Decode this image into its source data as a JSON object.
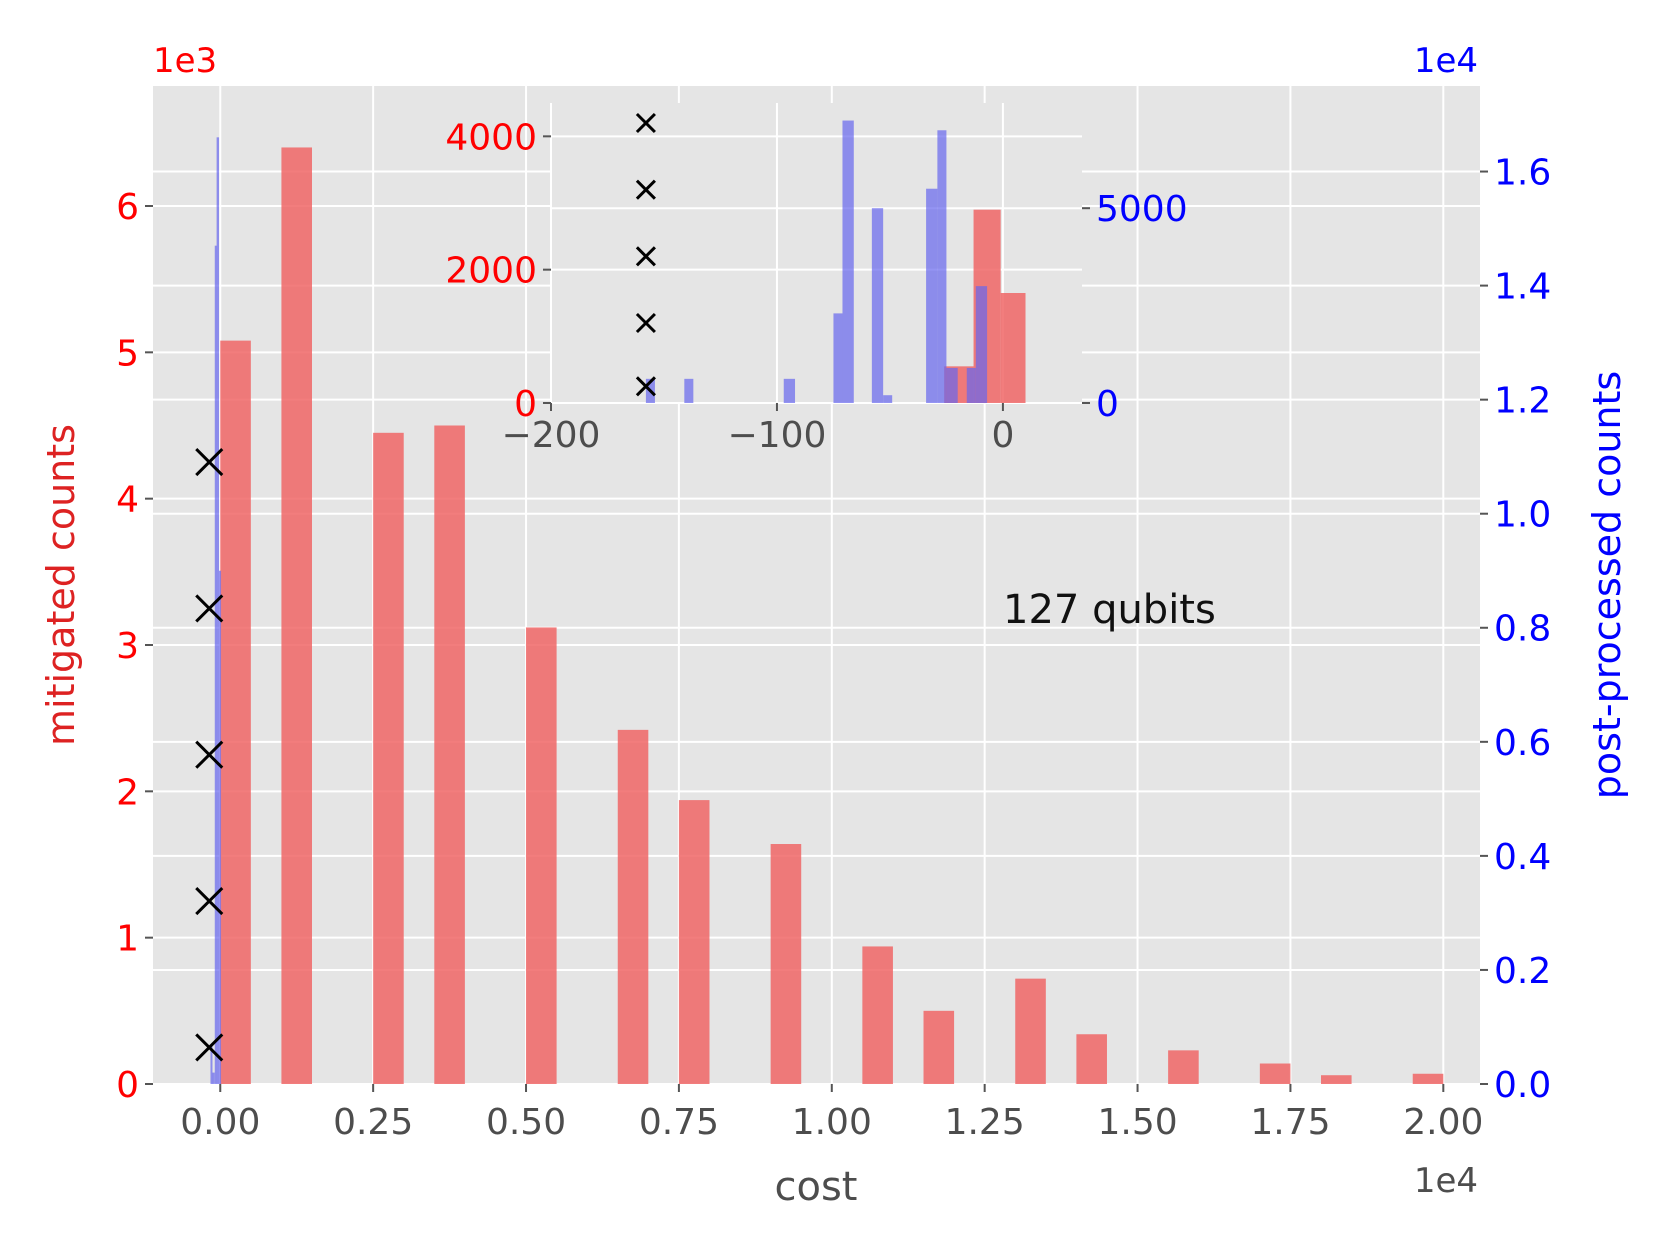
{
  "chart_data": [
    {
      "panel": "main",
      "type": "bar",
      "xlabel": "cost",
      "x_offset_text": "1e4",
      "x_ticks": [
        0.0,
        0.25,
        0.5,
        0.75,
        1.0,
        1.25,
        1.5,
        1.75,
        2.0
      ],
      "x_tick_labels": [
        "0.00",
        "0.25",
        "0.50",
        "0.75",
        "1.00",
        "1.25",
        "1.50",
        "1.75",
        "2.00"
      ],
      "xlim": [
        -0.11,
        2.06
      ],
      "ylabel_left": "mitigated counts",
      "y_left_offset_text": "1e3",
      "y_left_ticks": [
        0,
        1,
        2,
        3,
        4,
        5,
        6
      ],
      "ylim_left": [
        0,
        6.82
      ],
      "ylabel_right": "post-processed counts",
      "y_right_offset_text": "1e4",
      "y_right_ticks": [
        0.0,
        0.2,
        0.4,
        0.6,
        0.8,
        1.0,
        1.2,
        1.4,
        1.6
      ],
      "y_right_tick_labels": [
        "0.0",
        "0.2",
        "0.4",
        "0.6",
        "0.8",
        "1.0",
        "1.2",
        "1.4",
        "1.6"
      ],
      "ylim_right": [
        0,
        1.75
      ],
      "grid": true,
      "annotation": "127 qubits",
      "series": [
        {
          "name": "mitigated counts",
          "axis": "left",
          "color": "#f06666",
          "bin_width": 0.05,
          "bins": [
            {
              "x0": 0.0,
              "value": 5.08
            },
            {
              "x0": 0.1,
              "value": 6.4
            },
            {
              "x0": 0.25,
              "value": 4.45
            },
            {
              "x0": 0.35,
              "value": 4.5
            },
            {
              "x0": 0.5,
              "value": 3.12
            },
            {
              "x0": 0.65,
              "value": 2.42
            },
            {
              "x0": 0.75,
              "value": 1.94
            },
            {
              "x0": 0.9,
              "value": 1.64
            },
            {
              "x0": 1.05,
              "value": 0.94
            },
            {
              "x0": 1.15,
              "value": 0.5
            },
            {
              "x0": 1.3,
              "value": 0.72
            },
            {
              "x0": 1.4,
              "value": 0.34
            },
            {
              "x0": 1.55,
              "value": 0.23
            },
            {
              "x0": 1.7,
              "value": 0.14
            },
            {
              "x0": 1.8,
              "value": 0.06
            },
            {
              "x0": 1.95,
              "value": 0.07
            }
          ]
        },
        {
          "name": "post-processed counts",
          "axis": "right",
          "color": "#6666ee",
          "bins": [
            {
              "x0": -0.016,
              "x1": -0.013,
              "value": 0.07
            },
            {
              "x0": -0.013,
              "x1": -0.009,
              "value": 0.02
            },
            {
              "x0": -0.009,
              "x1": -0.006,
              "value": 1.47
            },
            {
              "x0": -0.006,
              "x1": -0.002,
              "value": 1.66
            },
            {
              "x0": -0.002,
              "x1": 0.001,
              "value": 0.9
            }
          ]
        }
      ],
      "markers": {
        "symbol": "×",
        "x": -0.018,
        "y_left": [
          0.25,
          1.25,
          2.25,
          3.25,
          4.25
        ]
      }
    },
    {
      "panel": "inset",
      "type": "bar",
      "x_ticks": [
        -200,
        -100,
        0
      ],
      "x_tick_labels": [
        "−200",
        "−100",
        "0"
      ],
      "xlim": [
        -200,
        35
      ],
      "y_left_ticks": [
        0,
        2000,
        4000
      ],
      "ylim_left": [
        0,
        4500
      ],
      "y_right_ticks": [
        0,
        5000
      ],
      "ylim_right": [
        0,
        7700
      ],
      "grid": true,
      "series": [
        {
          "name": "mitigated counts",
          "axis": "left",
          "color": "#f06666",
          "bins": [
            {
              "x0": -26,
              "x1": -13,
              "value": 550
            },
            {
              "x0": -13,
              "x1": -1,
              "value": 2900
            },
            {
              "x0": -1,
              "x1": 10,
              "value": 1650
            }
          ]
        },
        {
          "name": "post-processed counts",
          "axis": "right",
          "color": "#6666ee",
          "bins": [
            {
              "x0": -158,
              "x1": -154,
              "value": 620
            },
            {
              "x0": -141,
              "x1": -137,
              "value": 620
            },
            {
              "x0": -97,
              "x1": -92,
              "value": 620
            },
            {
              "x0": -75,
              "x1": -71,
              "value": 2300
            },
            {
              "x0": -71,
              "x1": -66,
              "value": 7250
            },
            {
              "x0": -58,
              "x1": -53,
              "value": 5000
            },
            {
              "x0": -53,
              "x1": -49,
              "value": 200
            },
            {
              "x0": -34,
              "x1": -29,
              "value": 5500
            },
            {
              "x0": -29,
              "x1": -25,
              "value": 7000
            },
            {
              "x0": -25,
              "x1": -20,
              "value": 900
            },
            {
              "x0": -16,
              "x1": -12,
              "value": 900
            },
            {
              "x0": -12,
              "x1": -7,
              "value": 3000
            }
          ]
        }
      ],
      "markers": {
        "symbol": "×",
        "x": -158,
        "y_left": [
          4200,
          3200,
          2200,
          1200,
          250
        ]
      }
    }
  ]
}
